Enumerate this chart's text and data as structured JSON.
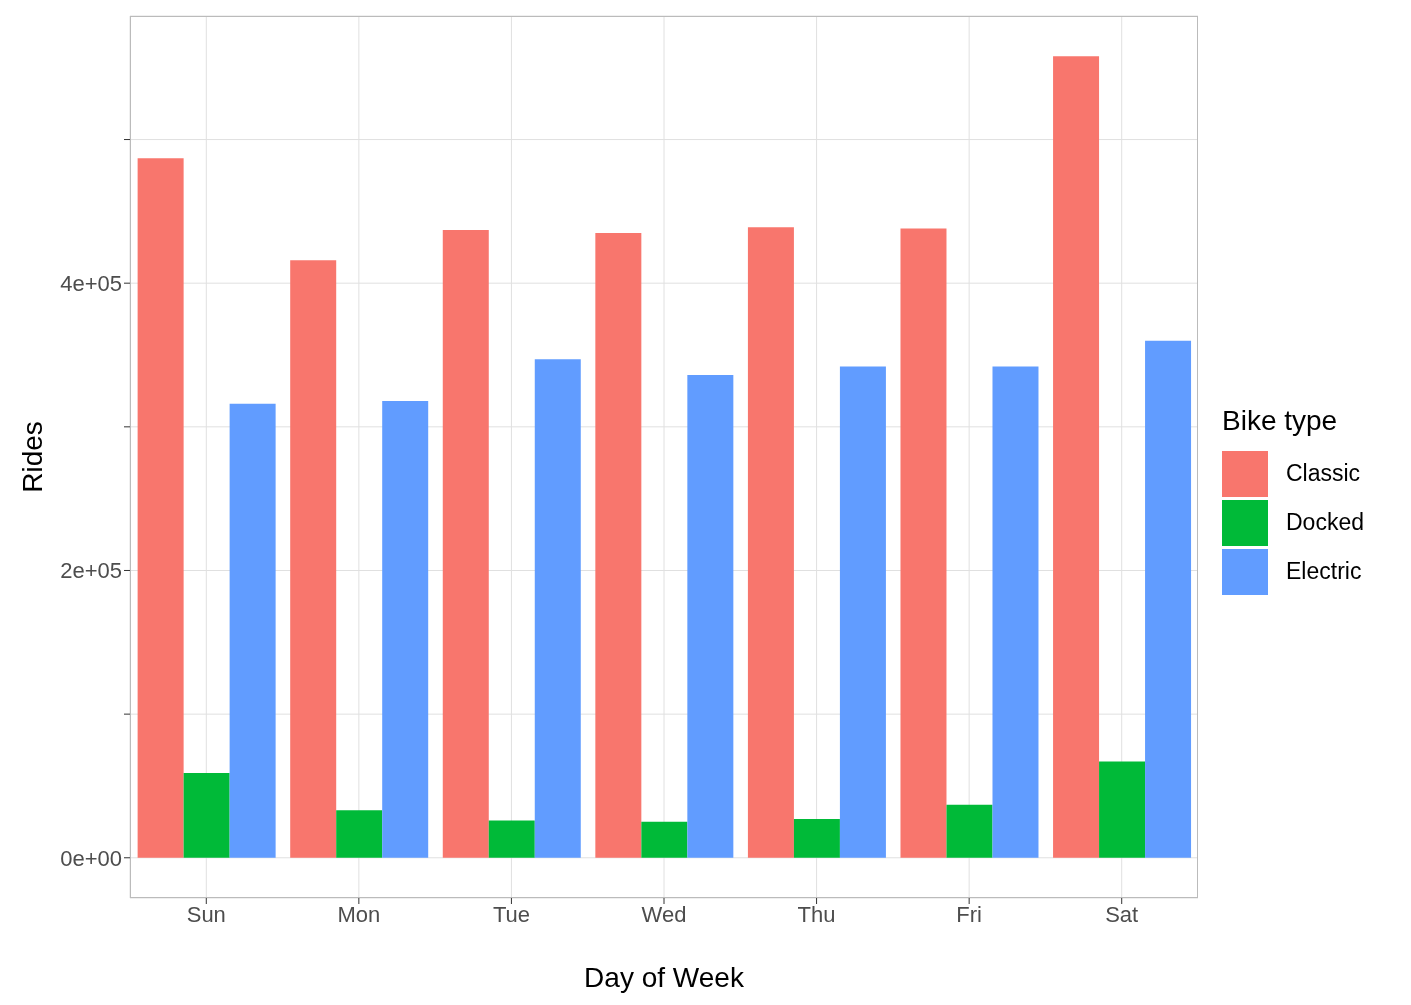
{
  "chart_data": {
    "type": "bar",
    "xlabel": "Day of Week",
    "ylabel": "Rides",
    "legend_title": "Bike type",
    "categories": [
      "Sun",
      "Mon",
      "Tue",
      "Wed",
      "Thu",
      "Fri",
      "Sat"
    ],
    "series": [
      {
        "name": "Classic",
        "color": "#f8766d",
        "values": [
          487000,
          416000,
          437000,
          435000,
          439000,
          438000,
          558000
        ]
      },
      {
        "name": "Docked",
        "color": "#00ba38",
        "values": [
          59000,
          33000,
          26000,
          25000,
          27000,
          37000,
          67000
        ]
      },
      {
        "name": "Electric",
        "color": "#619cff",
        "values": [
          316000,
          318000,
          347000,
          336000,
          342000,
          342000,
          360000
        ]
      }
    ],
    "ylim": [
      -28000,
      586000
    ],
    "yticks": [
      {
        "value": 0,
        "label": "0e+00"
      },
      {
        "value": 100000,
        "label": null
      },
      {
        "value": 200000,
        "label": "2e+05"
      },
      {
        "value": 300000,
        "label": null
      },
      {
        "value": 400000,
        "label": "4e+05"
      },
      {
        "value": 500000,
        "label": null
      }
    ],
    "grid": true,
    "legend": "right"
  }
}
